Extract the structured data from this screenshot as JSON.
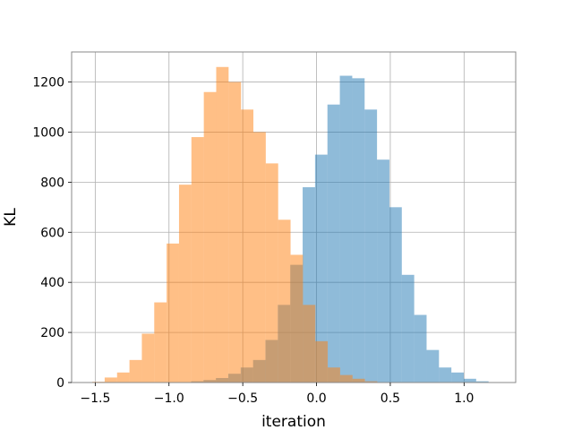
{
  "chart_data": {
    "type": "histogram",
    "title": "",
    "xlabel": "iteration",
    "ylabel": "KL",
    "xlim": [
      -1.66,
      1.35
    ],
    "ylim": [
      0,
      1320
    ],
    "grid": true,
    "x_ticks": [
      -1.5,
      -1.0,
      -0.5,
      0.0,
      0.5,
      1.0
    ],
    "x_tick_labels": [
      "−1.5",
      "−1.0",
      "−0.5",
      "0.0",
      "0.5",
      "1.0"
    ],
    "y_ticks": [
      0,
      200,
      400,
      600,
      800,
      1000,
      1200
    ],
    "y_tick_labels": [
      "0",
      "200",
      "400",
      "600",
      "800",
      "1000",
      "1200"
    ],
    "series": [
      {
        "color": "#1f77b4",
        "alpha": 0.5,
        "bin_edges": [
          -0.85,
          -0.766,
          -0.682,
          -0.598,
          -0.514,
          -0.43,
          -0.346,
          -0.262,
          -0.178,
          -0.094,
          -0.01,
          0.074,
          0.158,
          0.242,
          0.326,
          0.41,
          0.494,
          0.578,
          0.662,
          0.746,
          0.83,
          0.914,
          0.998,
          1.082,
          1.166
        ],
        "counts": [
          5,
          10,
          18,
          35,
          60,
          90,
          170,
          310,
          470,
          780,
          910,
          1110,
          1225,
          1215,
          1090,
          890,
          700,
          430,
          270,
          130,
          60,
          40,
          15,
          5
        ]
      },
      {
        "color": "#ff7f0e",
        "alpha": 0.5,
        "bin_edges": [
          -1.52,
          -1.436,
          -1.352,
          -1.268,
          -1.184,
          -1.1,
          -1.016,
          -0.932,
          -0.848,
          -0.764,
          -0.68,
          -0.596,
          -0.512,
          -0.428,
          -0.344,
          -0.26,
          -0.176,
          -0.092,
          -0.008,
          0.076,
          0.16,
          0.244,
          0.328,
          0.412
        ],
        "counts": [
          3,
          20,
          40,
          90,
          195,
          320,
          555,
          790,
          980,
          1160,
          1260,
          1200,
          1090,
          1000,
          875,
          650,
          510,
          310,
          165,
          60,
          30,
          15,
          5
        ]
      }
    ]
  }
}
